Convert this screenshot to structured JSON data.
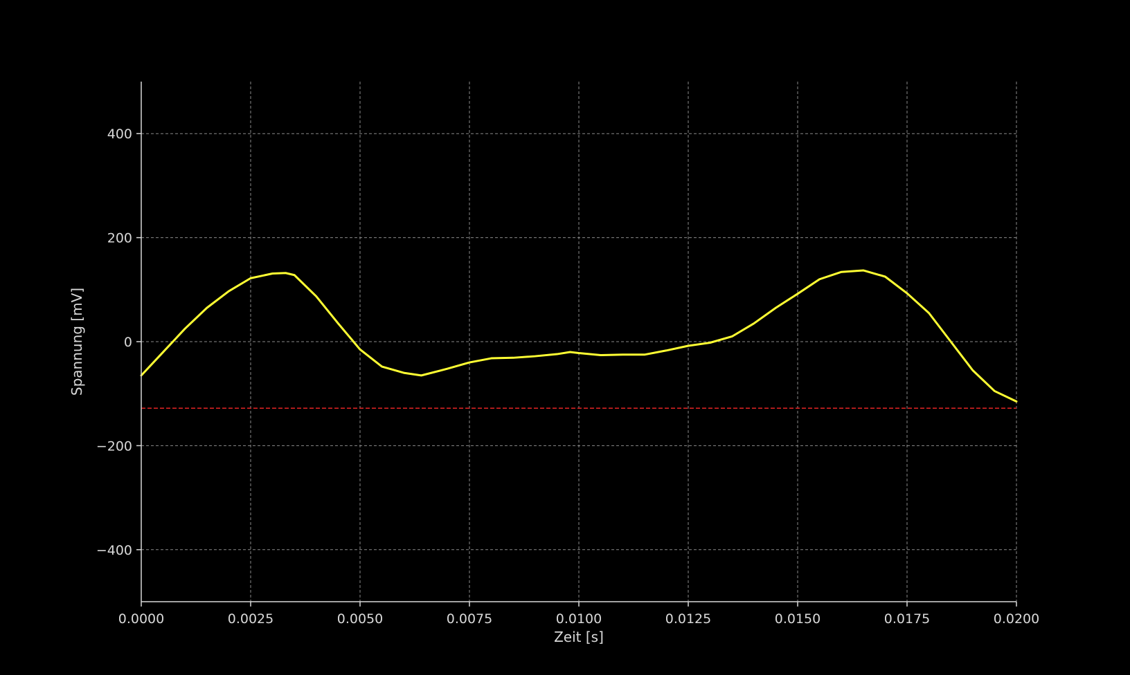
{
  "chart_data": {
    "type": "line",
    "title": "",
    "xlabel": "Zeit [s]",
    "ylabel": "Spannung [mV]",
    "xlim": [
      0.0,
      0.02
    ],
    "ylim": [
      -500,
      500
    ],
    "xticks": [
      0.0,
      0.0025,
      0.005,
      0.0075,
      0.01,
      0.0125,
      0.015,
      0.0175,
      0.02
    ],
    "xtick_labels": [
      "0.0000",
      "0.0025",
      "0.0050",
      "0.0075",
      "0.0100",
      "0.0125",
      "0.0150",
      "0.0175",
      "0.0200"
    ],
    "yticks": [
      -400,
      -200,
      0,
      200,
      400
    ],
    "ytick_labels": [
      "−400",
      "−200",
      "0",
      "200",
      "400"
    ],
    "grid": true,
    "background_color": "#000000",
    "axis_color": "#d9d9d9",
    "grid_color": "#8a8a8a",
    "series": [
      {
        "color": "#ffff33",
        "x": [
          0.0,
          0.0005,
          0.001,
          0.0015,
          0.002,
          0.0025,
          0.003,
          0.0033,
          0.0035,
          0.004,
          0.0045,
          0.005,
          0.0055,
          0.006,
          0.0064,
          0.007,
          0.0075,
          0.008,
          0.0085,
          0.009,
          0.0095,
          0.0098,
          0.01,
          0.0105,
          0.011,
          0.0115,
          0.012,
          0.0125,
          0.013,
          0.0135,
          0.014,
          0.0145,
          0.015,
          0.0155,
          0.016,
          0.0165,
          0.017,
          0.0175,
          0.018,
          0.0185,
          0.019,
          0.0195,
          0.02
        ],
        "y": [
          -65,
          -20,
          25,
          65,
          97,
          122,
          131,
          132,
          128,
          87,
          35,
          -15,
          -48,
          -60,
          -65,
          -52,
          -40,
          -32,
          -31,
          -28,
          -24,
          -20,
          -22,
          -26,
          -25,
          -25,
          -17,
          -8,
          -2,
          10,
          35,
          65,
          92,
          120,
          134,
          137,
          125,
          93,
          55,
          0,
          -55,
          -95,
          -115
        ]
      }
    ],
    "reference_lines": [
      {
        "orientation": "horizontal",
        "y": -128,
        "color": "#e32424",
        "style": "dashed"
      }
    ]
  }
}
